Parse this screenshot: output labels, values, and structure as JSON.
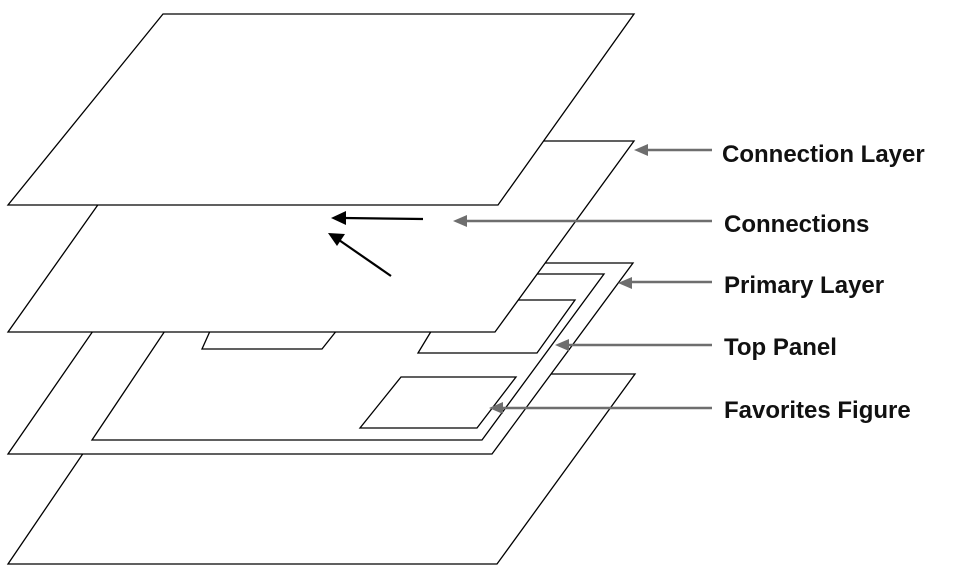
{
  "labels": {
    "connection_layer": "Connection Layer",
    "connections": "Connections",
    "primary_layer": "Primary Layer",
    "top_panel": "Top Panel",
    "favorites_figure": "Favorites Figure"
  },
  "colors": {
    "plate_stroke": "#000000",
    "plate_fill": "#ffffff",
    "callout_arrow": "#6e6e6e",
    "connection_arrow": "#000000",
    "label_text": "#111111"
  }
}
